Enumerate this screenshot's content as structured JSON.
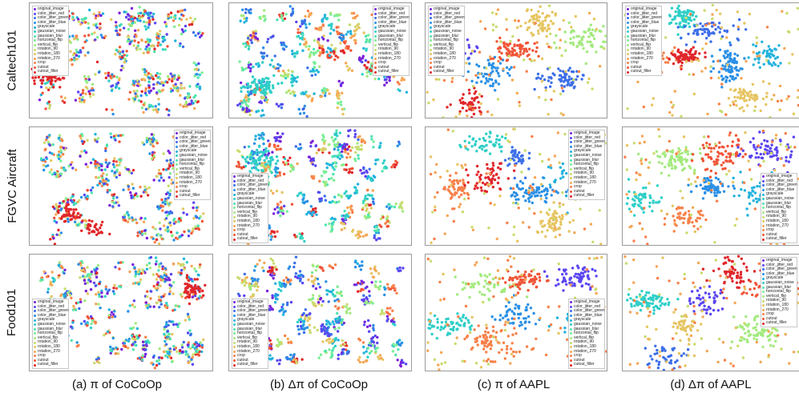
{
  "rows": [
    "Caltech101",
    "FGVC Aircraft",
    "Food101"
  ],
  "captions": [
    "(a) π of CoCoOp",
    "(b) Δπ of CoCoOp",
    "(c) π of AAPL",
    "(d) Δπ of AAPL"
  ],
  "legend_labels": [
    "original_image",
    "color_jitter_red",
    "color_jitter_green",
    "color_jitter_blue",
    "grayscale",
    "gaussian_noise",
    "gaussian_blur",
    "horizontal_flip",
    "vertical_flip",
    "rotation_90",
    "rotation_180",
    "rotation_270",
    "crop",
    "cutout",
    "cutout_filler"
  ],
  "legend_colors": [
    "#7a1fd9",
    "#5a46f0",
    "#3c6ee8",
    "#2a90e6",
    "#22b2dd",
    "#2fcfc8",
    "#4fe3b0",
    "#78ee95",
    "#a3ea7e",
    "#c9dc6e",
    "#e6c562",
    "#f5a656",
    "#f7814a",
    "#f05538",
    "#e0262a"
  ],
  "chart_data": [
    {
      "type": "scatter",
      "row": "Caltech101",
      "column": "(a) π of CoCoOp",
      "legend_position": "top-left",
      "clusters": [
        {
          "label": "cutout_filler",
          "x": 0.1,
          "y": 0.62
        }
      ]
    },
    {
      "type": "scatter",
      "row": "Caltech101",
      "column": "(b) Δπ of CoCoOp",
      "legend_position": "top-right",
      "clusters": [
        {
          "label": "gaussian_noise",
          "x": 0.17,
          "y": 0.72
        }
      ]
    },
    {
      "type": "scatter",
      "row": "Caltech101",
      "column": "(c) π of AAPL",
      "legend_position": "top-left",
      "clusters": []
    },
    {
      "type": "scatter",
      "row": "Caltech101",
      "column": "(d) Δπ of AAPL",
      "legend_position": "top-left",
      "clusters": []
    },
    {
      "type": "scatter",
      "row": "FGVC Aircraft",
      "column": "(a) π of CoCoOp",
      "legend_position": "top-right",
      "clusters": []
    },
    {
      "type": "scatter",
      "row": "FGVC Aircraft",
      "column": "(b) Δπ of CoCoOp",
      "legend_position": "bottom-left",
      "clusters": []
    },
    {
      "type": "scatter",
      "row": "FGVC Aircraft",
      "column": "(c) π of AAPL",
      "legend_position": "top-right",
      "clusters": []
    },
    {
      "type": "scatter",
      "row": "FGVC Aircraft",
      "column": "(d) Δπ of AAPL",
      "legend_position": "bottom-right",
      "clusters": []
    },
    {
      "type": "scatter",
      "row": "Food101",
      "column": "(a) π of CoCoOp",
      "legend_position": "bottom-left",
      "clusters": []
    },
    {
      "type": "scatter",
      "row": "Food101",
      "column": "(b) Δπ of CoCoOp",
      "legend_position": "bottom-left",
      "clusters": []
    },
    {
      "type": "scatter",
      "row": "Food101",
      "column": "(c) π of AAPL",
      "legend_position": "bottom-right",
      "clusters": []
    },
    {
      "type": "scatter",
      "row": "Food101",
      "column": "(d) Δπ of AAPL",
      "legend_position": "top-right",
      "clusters": []
    }
  ]
}
